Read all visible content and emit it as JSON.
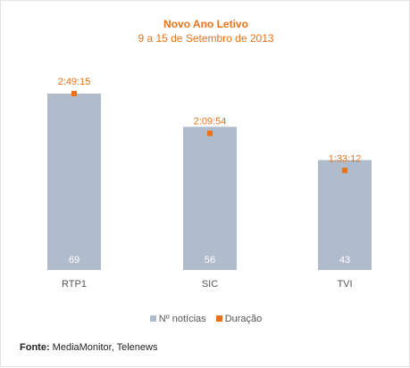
{
  "colors": {
    "bar": "#b0bccb",
    "marker": "#e8731c",
    "title": "#e8731c",
    "bar_label": "#ffffff",
    "axis_label": "#555555"
  },
  "chart_data": {
    "type": "bar",
    "title": "Novo Ano Letivo",
    "subtitle": "9 a 15 de Setembro de 2013",
    "categories": [
      "RTP1",
      "SIC",
      "TVI"
    ],
    "series": [
      {
        "name": "Nº notícias",
        "values": [
          69,
          56,
          43
        ],
        "value_labels": [
          "69",
          "56",
          "43"
        ]
      },
      {
        "name": "Duração",
        "values": [
          "2:49:15",
          "2:09:54",
          "1:33:12"
        ],
        "value_labels": [
          "2:49:15",
          "2:09:54",
          "1:33:12"
        ]
      }
    ],
    "ylim": [
      0,
      69
    ],
    "grid": false,
    "legend_position": "bottom"
  },
  "footer": {
    "label": "Fonte:",
    "text": " MediaMonitor, Telenews"
  }
}
